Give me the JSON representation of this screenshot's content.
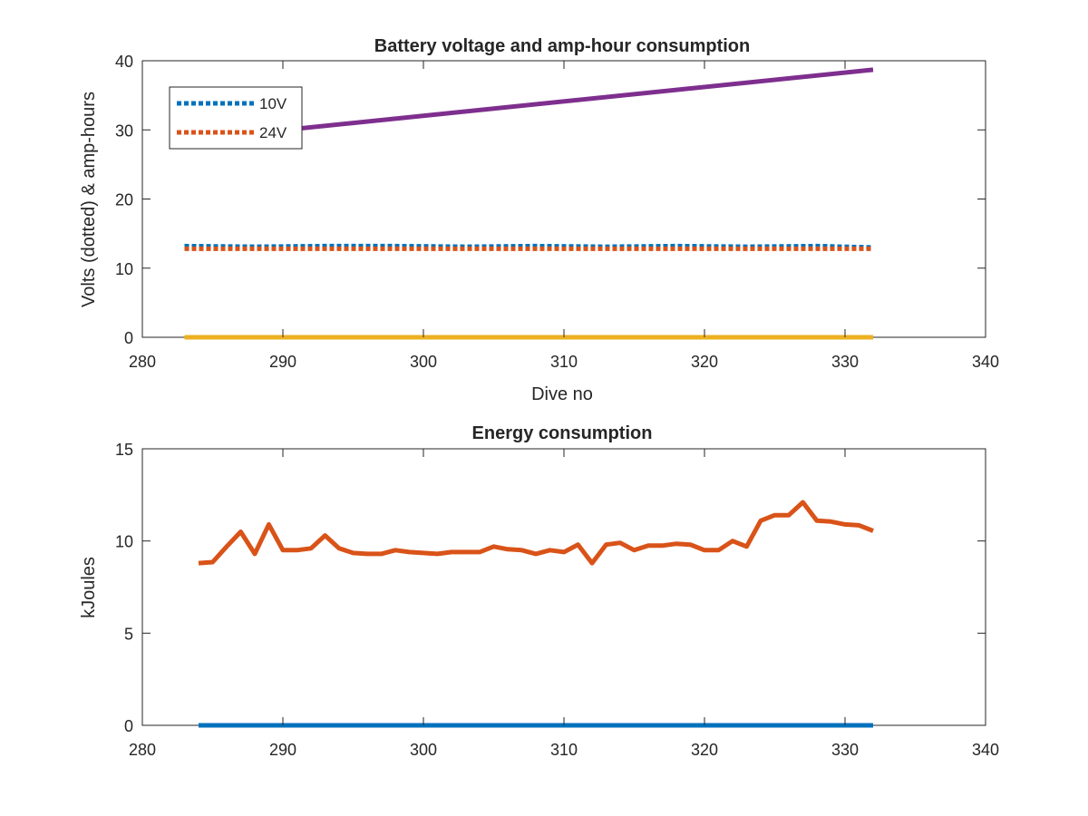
{
  "chart_data": [
    {
      "type": "line",
      "title": "Battery voltage and amp-hour consumption",
      "xlabel": "Dive no",
      "ylabel": "Volts (dotted) & amp-hours",
      "xlim": [
        280,
        340
      ],
      "ylim": [
        0,
        40
      ],
      "xticks": [
        "280",
        "290",
        "300",
        "310",
        "320",
        "330",
        "340"
      ],
      "yticks": [
        "0",
        "10",
        "20",
        "30",
        "40"
      ],
      "legend_position": "top-left",
      "series": [
        {
          "name": "10V",
          "style": "dotted",
          "color": "#0072BD",
          "x": [
            283,
            288,
            293,
            298,
            303,
            308,
            313,
            318,
            323,
            328,
            332
          ],
          "y": [
            13.2,
            13.1,
            13.2,
            13.2,
            13.1,
            13.2,
            13.1,
            13.2,
            13.1,
            13.2,
            13.0
          ]
        },
        {
          "name": "24V",
          "style": "dotted",
          "color": "#D95319",
          "x": [
            283,
            288,
            293,
            298,
            303,
            308,
            313,
            318,
            323,
            328,
            332
          ],
          "y": [
            12.8,
            12.8,
            12.8,
            12.8,
            12.8,
            12.8,
            12.8,
            12.8,
            12.8,
            12.8,
            12.8
          ]
        },
        {
          "style": "solid",
          "color": "#EDB120",
          "x": [
            283,
            332
          ],
          "y": [
            0,
            0
          ]
        },
        {
          "style": "solid",
          "color": "#7E2F8E",
          "x": [
            283,
            332
          ],
          "y": [
            28.5,
            38.7
          ]
        }
      ]
    },
    {
      "type": "line",
      "title": "Energy consumption",
      "xlabel": "",
      "ylabel": "kJoules",
      "xlim": [
        280,
        340
      ],
      "ylim": [
        0,
        15
      ],
      "xticks": [
        "280",
        "290",
        "300",
        "310",
        "320",
        "330",
        "340"
      ],
      "yticks": [
        "0",
        "5",
        "10",
        "15"
      ],
      "series": [
        {
          "style": "solid",
          "color": "#0072BD",
          "x": [
            284,
            332
          ],
          "y": [
            0,
            0
          ]
        },
        {
          "style": "solid",
          "color": "#D95319",
          "x": [
            284,
            285,
            286,
            287,
            288,
            289,
            290,
            291,
            292,
            293,
            294,
            295,
            296,
            297,
            298,
            299,
            300,
            301,
            302,
            303,
            304,
            305,
            306,
            307,
            308,
            309,
            310,
            311,
            312,
            313,
            314,
            315,
            316,
            317,
            318,
            319,
            320,
            321,
            322,
            323,
            324,
            325,
            326,
            327,
            328,
            329,
            330,
            331,
            332
          ],
          "y": [
            8.8,
            8.85,
            9.7,
            10.5,
            9.3,
            10.9,
            9.5,
            9.5,
            9.6,
            10.3,
            9.6,
            9.35,
            9.3,
            9.3,
            9.5,
            9.4,
            9.35,
            9.3,
            9.4,
            9.4,
            9.4,
            9.7,
            9.55,
            9.5,
            9.3,
            9.5,
            9.4,
            9.8,
            8.8,
            9.8,
            9.9,
            9.5,
            9.75,
            9.75,
            9.85,
            9.8,
            9.5,
            9.5,
            10.0,
            9.7,
            11.1,
            11.4,
            11.4,
            12.1,
            11.1,
            11.05,
            10.9,
            10.85,
            10.55
          ]
        }
      ]
    }
  ]
}
